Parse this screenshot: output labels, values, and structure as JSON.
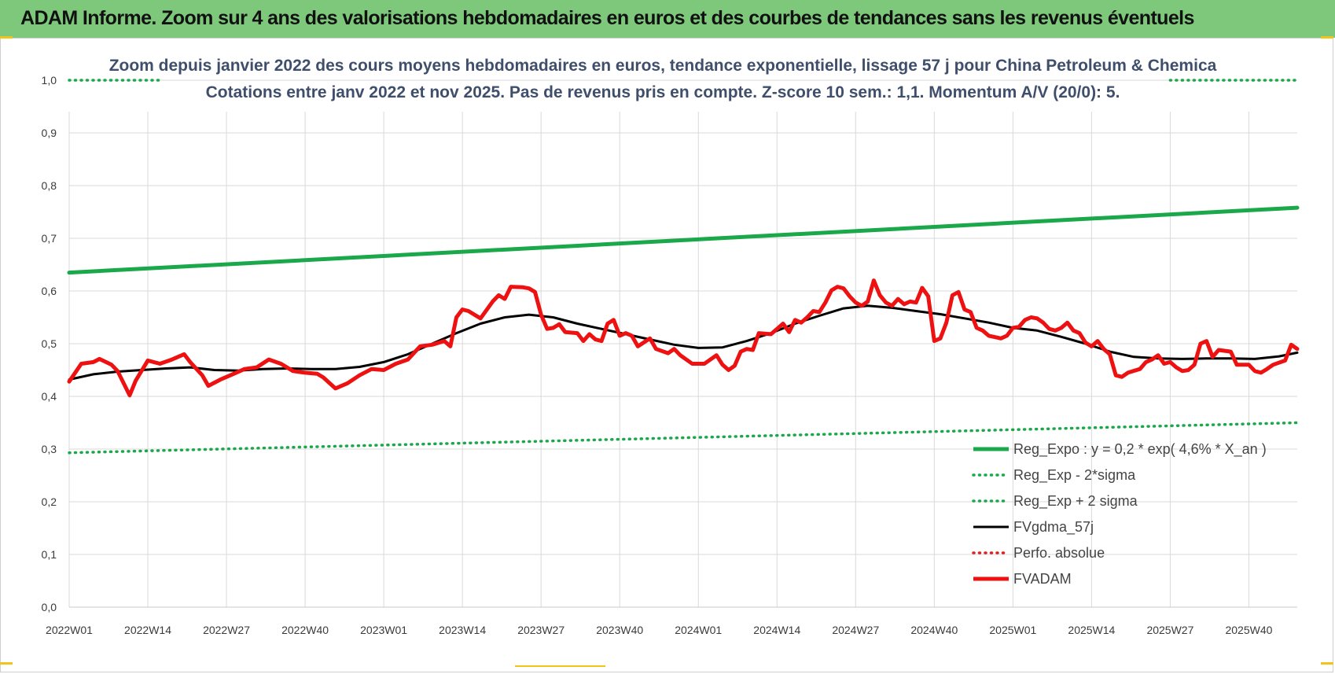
{
  "header": {
    "title": "ADAM Informe. Zoom sur 4 ans des valorisations hebdomadaires en euros et des courbes de tendances sans les revenus éventuels"
  },
  "colors": {
    "banner": "#7dc87a",
    "reg_expo": "#1aa84a",
    "sigma": "#1aa84a",
    "fvgdma": "#000000",
    "perfo": "#e02020",
    "fvadam": "#ee1111",
    "grid": "#d9d9d9"
  },
  "chart_data": {
    "type": "line",
    "title": "Zoom depuis janvier 2022 des cours moyens hebdomadaires en euros, tendance exponentielle, lissage 57 j pour China Petroleum & Chemica",
    "subtitle": "Cotations entre janv 2022 et nov 2025. Pas de revenus pris en compte. Z-score 10 sem.: 1,1. Momentum A/V (20/0): 5.",
    "xlabel": "",
    "ylabel": "",
    "ylim": [
      0,
      1.0
    ],
    "yticks": [
      "0,0",
      "0,1",
      "0,2",
      "0,3",
      "0,4",
      "0,5",
      "0,6",
      "0,7",
      "0,8",
      "0,9",
      "1,0"
    ],
    "x_count": 204,
    "xticks": [
      {
        "index": 0,
        "label": "2022W01"
      },
      {
        "index": 13,
        "label": "2022W14"
      },
      {
        "index": 26,
        "label": "2022W27"
      },
      {
        "index": 39,
        "label": "2022W40"
      },
      {
        "index": 52,
        "label": "2023W01"
      },
      {
        "index": 65,
        "label": "2023W14"
      },
      {
        "index": 78,
        "label": "2023W27"
      },
      {
        "index": 91,
        "label": "2023W40"
      },
      {
        "index": 104,
        "label": "2024W01"
      },
      {
        "index": 117,
        "label": "2024W14"
      },
      {
        "index": 130,
        "label": "2024W27"
      },
      {
        "index": 143,
        "label": "2024W40"
      },
      {
        "index": 156,
        "label": "2025W01"
      },
      {
        "index": 169,
        "label": "2025W14"
      },
      {
        "index": 182,
        "label": "2025W27"
      },
      {
        "index": 195,
        "label": "2025W40"
      }
    ],
    "series": [
      {
        "name": "Reg_Expo : y = 0,2 * exp( 4,6% *  X_an )",
        "style": "solid-thick",
        "points": [
          [
            0,
            0.635
          ],
          [
            203,
            0.758
          ]
        ]
      },
      {
        "name": "Reg_Exp - 2*sigma",
        "style": "dotted",
        "points": [
          [
            0,
            0.293
          ],
          [
            203,
            0.35
          ]
        ]
      },
      {
        "name": "Reg_Exp + 2 sigma",
        "style": "dotted",
        "segments": [
          [
            [
              0,
              1.0
            ],
            [
              15,
              1.0
            ]
          ],
          [
            [
              182,
              1.0
            ],
            [
              203,
              1.0
            ]
          ]
        ]
      },
      {
        "name": "FVgdma_57j",
        "style": "solid",
        "points": [
          [
            0,
            0.432
          ],
          [
            4,
            0.442
          ],
          [
            8,
            0.447
          ],
          [
            12,
            0.45
          ],
          [
            16,
            0.453
          ],
          [
            20,
            0.455
          ],
          [
            24,
            0.45
          ],
          [
            28,
            0.449
          ],
          [
            32,
            0.452
          ],
          [
            36,
            0.453
          ],
          [
            40,
            0.452
          ],
          [
            44,
            0.452
          ],
          [
            48,
            0.456
          ],
          [
            52,
            0.465
          ],
          [
            56,
            0.48
          ],
          [
            60,
            0.5
          ],
          [
            64,
            0.52
          ],
          [
            68,
            0.538
          ],
          [
            72,
            0.55
          ],
          [
            76,
            0.555
          ],
          [
            80,
            0.55
          ],
          [
            84,
            0.538
          ],
          [
            88,
            0.528
          ],
          [
            92,
            0.518
          ],
          [
            96,
            0.508
          ],
          [
            100,
            0.498
          ],
          [
            104,
            0.492
          ],
          [
            108,
            0.493
          ],
          [
            112,
            0.505
          ],
          [
            116,
            0.52
          ],
          [
            120,
            0.538
          ],
          [
            124,
            0.553
          ],
          [
            128,
            0.567
          ],
          [
            132,
            0.572
          ],
          [
            136,
            0.568
          ],
          [
            140,
            0.562
          ],
          [
            144,
            0.556
          ],
          [
            148,
            0.548
          ],
          [
            152,
            0.54
          ],
          [
            156,
            0.53
          ],
          [
            160,
            0.525
          ],
          [
            164,
            0.513
          ],
          [
            168,
            0.5
          ],
          [
            172,
            0.485
          ],
          [
            176,
            0.475
          ],
          [
            180,
            0.472
          ],
          [
            184,
            0.471
          ],
          [
            188,
            0.472
          ],
          [
            192,
            0.472
          ],
          [
            196,
            0.471
          ],
          [
            200,
            0.476
          ],
          [
            203,
            0.483
          ]
        ]
      },
      {
        "name": "Perfo. absolue",
        "style": "dotted-red",
        "points": []
      },
      {
        "name": "FVADAM",
        "style": "solid-thick",
        "points": [
          [
            0,
            0.428
          ],
          [
            2,
            0.462
          ],
          [
            4,
            0.465
          ],
          [
            5,
            0.471
          ],
          [
            7,
            0.46
          ],
          [
            8,
            0.448
          ],
          [
            10,
            0.402
          ],
          [
            11,
            0.43
          ],
          [
            13,
            0.468
          ],
          [
            15,
            0.462
          ],
          [
            17,
            0.47
          ],
          [
            19,
            0.48
          ],
          [
            20,
            0.465
          ],
          [
            22,
            0.44
          ],
          [
            23,
            0.42
          ],
          [
            25,
            0.432
          ],
          [
            27,
            0.442
          ],
          [
            29,
            0.452
          ],
          [
            31,
            0.455
          ],
          [
            33,
            0.47
          ],
          [
            35,
            0.462
          ],
          [
            37,
            0.448
          ],
          [
            39,
            0.445
          ],
          [
            41,
            0.443
          ],
          [
            42,
            0.436
          ],
          [
            44,
            0.415
          ],
          [
            46,
            0.425
          ],
          [
            48,
            0.44
          ],
          [
            50,
            0.452
          ],
          [
            52,
            0.45
          ],
          [
            54,
            0.462
          ],
          [
            56,
            0.47
          ],
          [
            58,
            0.495
          ],
          [
            60,
            0.498
          ],
          [
            62,
            0.505
          ],
          [
            63,
            0.495
          ],
          [
            64,
            0.55
          ],
          [
            65,
            0.565
          ],
          [
            66,
            0.562
          ],
          [
            68,
            0.548
          ],
          [
            70,
            0.58
          ],
          [
            71,
            0.592
          ],
          [
            72,
            0.585
          ],
          [
            73,
            0.608
          ],
          [
            75,
            0.607
          ],
          [
            76,
            0.605
          ],
          [
            77,
            0.598
          ],
          [
            78,
            0.555
          ],
          [
            79,
            0.528
          ],
          [
            80,
            0.53
          ],
          [
            81,
            0.537
          ],
          [
            82,
            0.522
          ],
          [
            84,
            0.52
          ],
          [
            85,
            0.505
          ],
          [
            86,
            0.518
          ],
          [
            87,
            0.508
          ],
          [
            88,
            0.505
          ],
          [
            89,
            0.538
          ],
          [
            90,
            0.545
          ],
          [
            91,
            0.515
          ],
          [
            92,
            0.52
          ],
          [
            93,
            0.515
          ],
          [
            94,
            0.495
          ],
          [
            96,
            0.51
          ],
          [
            97,
            0.49
          ],
          [
            99,
            0.482
          ],
          [
            100,
            0.49
          ],
          [
            101,
            0.478
          ],
          [
            103,
            0.462
          ],
          [
            105,
            0.462
          ],
          [
            107,
            0.478
          ],
          [
            108,
            0.46
          ],
          [
            109,
            0.45
          ],
          [
            110,
            0.458
          ],
          [
            111,
            0.485
          ],
          [
            112,
            0.49
          ],
          [
            113,
            0.488
          ],
          [
            114,
            0.52
          ],
          [
            116,
            0.518
          ],
          [
            117,
            0.528
          ],
          [
            118,
            0.538
          ],
          [
            119,
            0.522
          ],
          [
            120,
            0.545
          ],
          [
            121,
            0.54
          ],
          [
            122,
            0.55
          ],
          [
            123,
            0.562
          ],
          [
            124,
            0.56
          ],
          [
            125,
            0.578
          ],
          [
            126,
            0.601
          ],
          [
            127,
            0.608
          ],
          [
            128,
            0.605
          ],
          [
            129,
            0.59
          ],
          [
            130,
            0.578
          ],
          [
            131,
            0.572
          ],
          [
            132,
            0.58
          ],
          [
            133,
            0.62
          ],
          [
            134,
            0.592
          ],
          [
            135,
            0.578
          ],
          [
            136,
            0.572
          ],
          [
            137,
            0.585
          ],
          [
            138,
            0.575
          ],
          [
            139,
            0.58
          ],
          [
            140,
            0.578
          ],
          [
            141,
            0.606
          ],
          [
            142,
            0.59
          ],
          [
            143,
            0.505
          ],
          [
            144,
            0.51
          ],
          [
            145,
            0.54
          ],
          [
            146,
            0.592
          ],
          [
            147,
            0.598
          ],
          [
            148,
            0.565
          ],
          [
            149,
            0.56
          ],
          [
            150,
            0.53
          ],
          [
            151,
            0.525
          ],
          [
            152,
            0.515
          ],
          [
            154,
            0.51
          ],
          [
            155,
            0.515
          ],
          [
            156,
            0.53
          ],
          [
            157,
            0.532
          ],
          [
            158,
            0.545
          ],
          [
            159,
            0.55
          ],
          [
            160,
            0.548
          ],
          [
            161,
            0.54
          ],
          [
            162,
            0.528
          ],
          [
            163,
            0.525
          ],
          [
            164,
            0.53
          ],
          [
            165,
            0.54
          ],
          [
            166,
            0.525
          ],
          [
            167,
            0.52
          ],
          [
            168,
            0.502
          ],
          [
            169,
            0.495
          ],
          [
            170,
            0.505
          ],
          [
            171,
            0.49
          ],
          [
            172,
            0.48
          ],
          [
            173,
            0.44
          ],
          [
            174,
            0.437
          ],
          [
            175,
            0.445
          ],
          [
            177,
            0.452
          ],
          [
            178,
            0.465
          ],
          [
            179,
            0.47
          ],
          [
            180,
            0.478
          ],
          [
            181,
            0.462
          ],
          [
            182,
            0.465
          ],
          [
            183,
            0.455
          ],
          [
            184,
            0.448
          ],
          [
            185,
            0.45
          ],
          [
            186,
            0.46
          ],
          [
            187,
            0.5
          ],
          [
            188,
            0.505
          ],
          [
            189,
            0.475
          ],
          [
            190,
            0.488
          ],
          [
            192,
            0.485
          ],
          [
            193,
            0.46
          ],
          [
            195,
            0.46
          ],
          [
            196,
            0.448
          ],
          [
            197,
            0.445
          ],
          [
            198,
            0.452
          ],
          [
            199,
            0.46
          ],
          [
            201,
            0.468
          ],
          [
            202,
            0.498
          ],
          [
            203,
            0.49
          ]
        ]
      }
    ],
    "legend_position": "bottom-right"
  }
}
